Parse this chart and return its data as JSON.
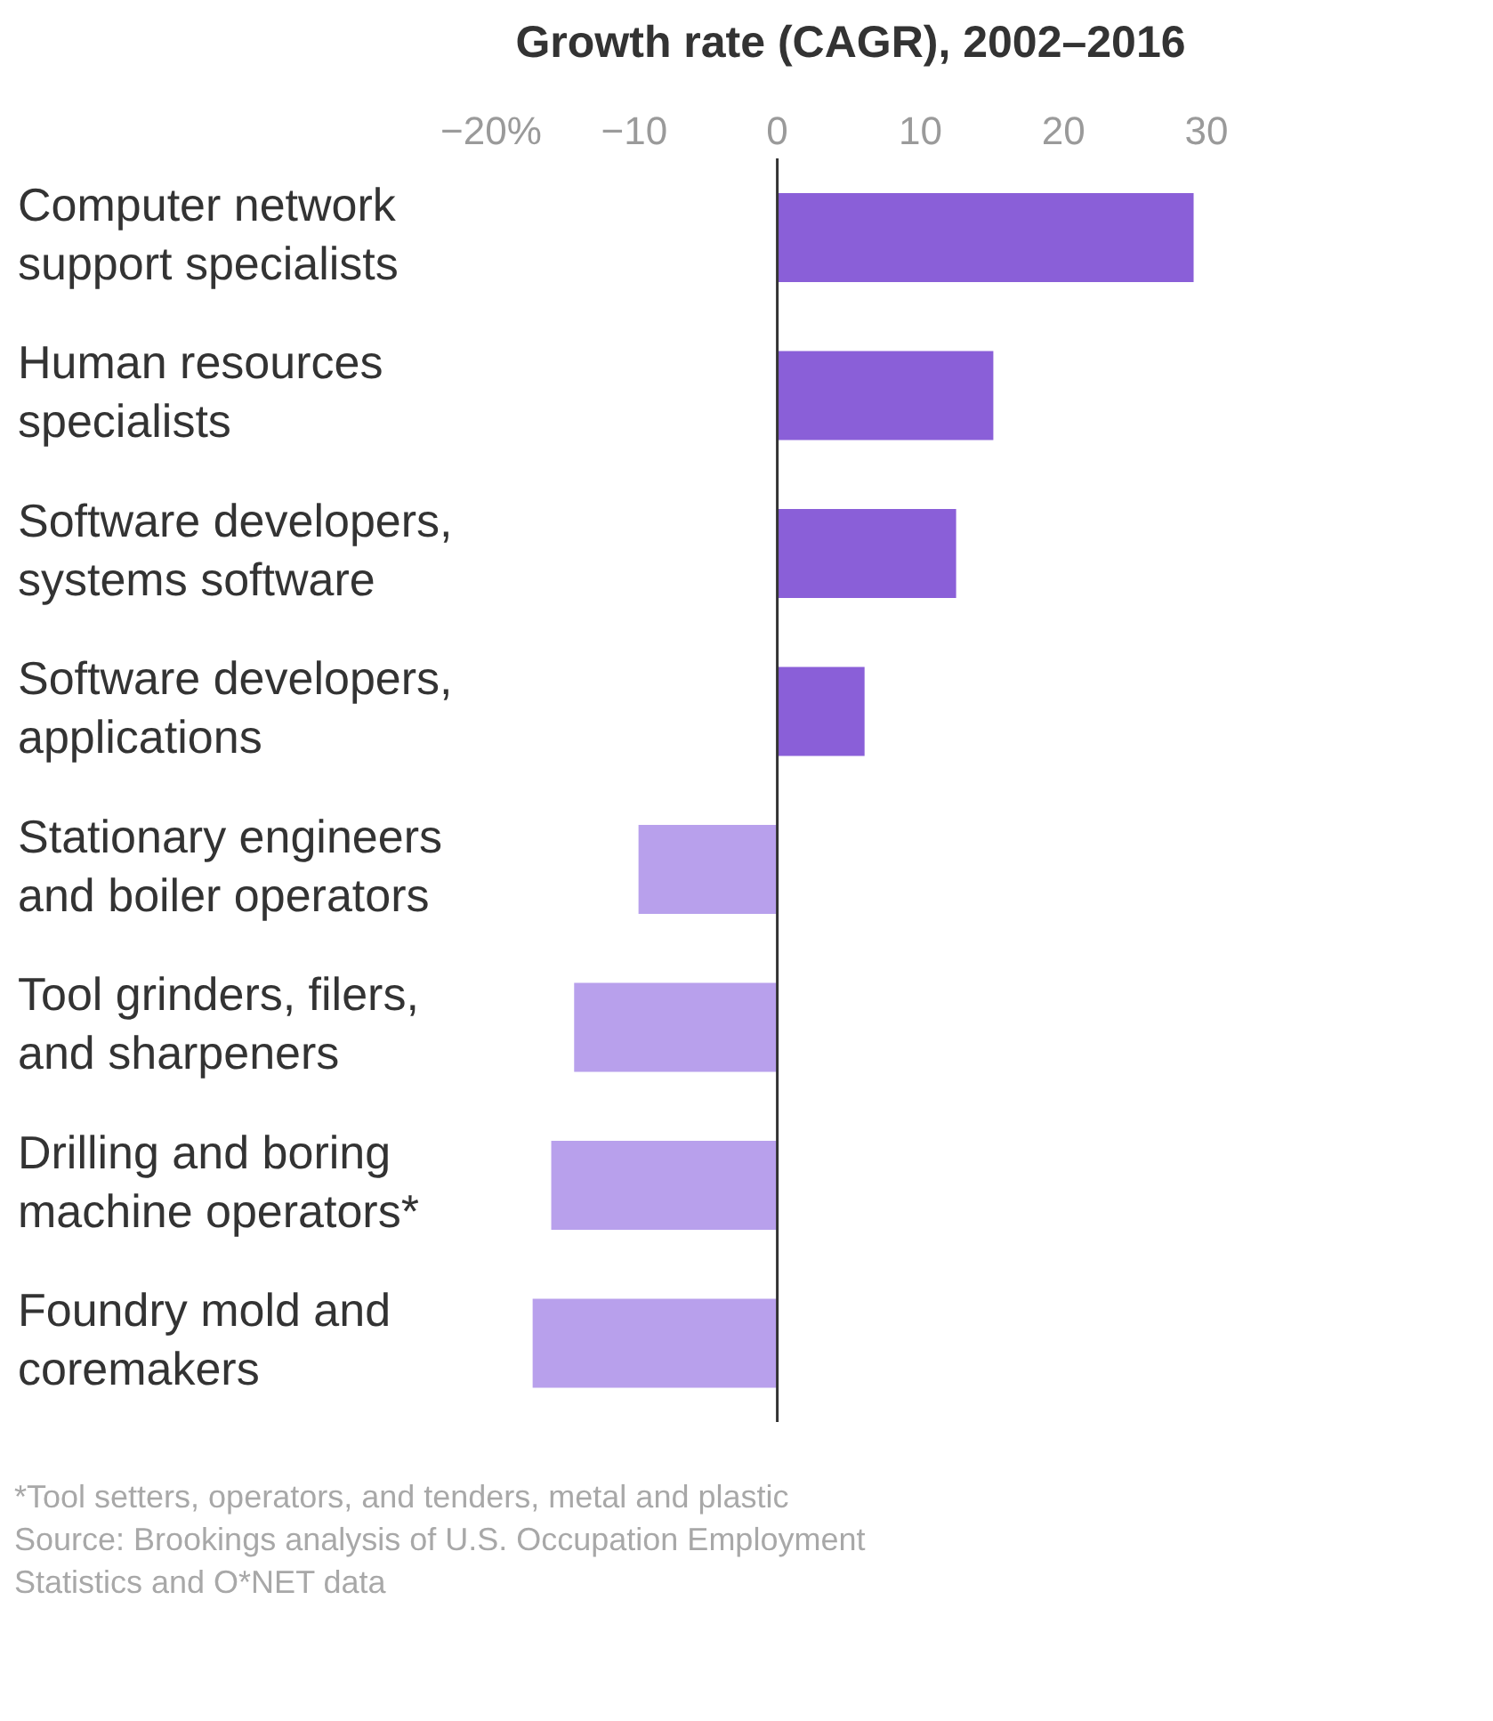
{
  "chart_data": {
    "type": "bar",
    "orientation": "horizontal",
    "title": "Growth rate (CAGR), 2002–2016",
    "categories": [
      "Computer network support specialists",
      "Human resources specialists",
      "Software developers, systems software",
      "Software developers, applications",
      "Stationary engineers and boiler operators",
      "Tool grinders, filers, and sharpeners",
      "Drilling and boring machine operators*",
      "Foundry mold and coremakers"
    ],
    "values": [
      29.1,
      15.1,
      12.5,
      6.1,
      -9.7,
      -14.2,
      -15.8,
      -17.1
    ],
    "colors": [
      "#8a5fd8",
      "#8a5fd8",
      "#8a5fd8",
      "#8a5fd8",
      "#b8a0ec",
      "#b8a0ec",
      "#b8a0ec",
      "#b8a0ec"
    ],
    "xlim": [
      -20,
      30
    ],
    "xticks": [
      {
        "value": -20,
        "label": "−20%"
      },
      {
        "value": -10,
        "label": "−10"
      },
      0,
      10,
      20,
      30
    ],
    "ref_lines": [
      {
        "axis": "x",
        "value": 0,
        "color": "#333333"
      }
    ],
    "grid": false,
    "legend": false,
    "annotations": [
      "*Tool setters, operators, and tenders, metal and plastic",
      "Source: Brookings analysis of U.S. Occupation Employment Statistics and O*NET data"
    ]
  }
}
